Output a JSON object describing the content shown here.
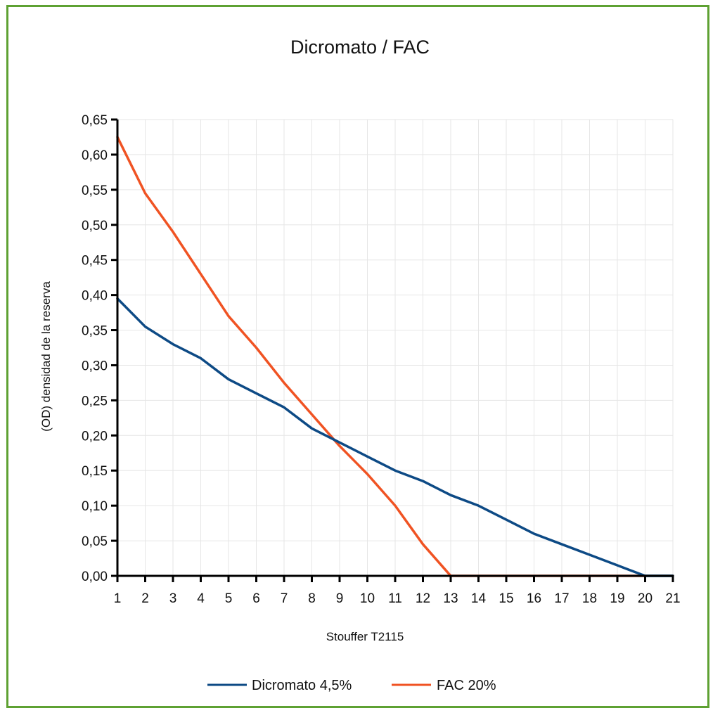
{
  "chart_data": {
    "type": "line",
    "title": "Dicromato / FAC",
    "xlabel": "Stouffer T2115",
    "ylabel": "(OD) densidad de la reserva",
    "x": [
      1,
      2,
      3,
      4,
      5,
      6,
      7,
      8,
      9,
      10,
      11,
      12,
      13,
      14,
      15,
      16,
      17,
      18,
      19,
      20,
      21
    ],
    "xlim": [
      1,
      21
    ],
    "ylim": [
      0,
      0.65
    ],
    "y_ticks": [
      "0,00",
      "0,05",
      "0,10",
      "0,15",
      "0,20",
      "0,25",
      "0,30",
      "0,35",
      "0,40",
      "0,45",
      "0,50",
      "0,55",
      "0,60",
      "0,65"
    ],
    "x_ticks": [
      "1",
      "2",
      "3",
      "4",
      "5",
      "6",
      "7",
      "8",
      "9",
      "10",
      "11",
      "12",
      "13",
      "14",
      "15",
      "16",
      "17",
      "18",
      "19",
      "20",
      "21"
    ],
    "grid": true,
    "legend_position": "bottom",
    "series": [
      {
        "name": "Dicromato 4,5%",
        "color": "#0d4a85",
        "x": [
          1,
          2,
          3,
          4,
          5,
          6,
          7,
          8,
          9,
          10,
          11,
          12,
          13,
          14,
          15,
          16,
          17,
          18,
          19,
          20,
          21
        ],
        "values": [
          0.395,
          0.355,
          0.33,
          0.31,
          0.28,
          0.26,
          0.24,
          0.21,
          0.19,
          0.17,
          0.15,
          0.135,
          0.115,
          0.1,
          0.08,
          0.06,
          0.045,
          0.03,
          0.015,
          0.0,
          0.0
        ]
      },
      {
        "name": "FAC 20%",
        "color": "#f05323",
        "x": [
          1,
          2,
          3,
          4,
          5,
          6,
          7,
          8,
          9,
          10,
          11,
          12,
          13,
          14,
          15,
          16,
          17,
          18,
          19,
          20
        ],
        "values": [
          0.625,
          0.545,
          0.49,
          0.43,
          0.37,
          0.325,
          0.275,
          0.23,
          0.185,
          0.145,
          0.1,
          0.045,
          0.0,
          0.0,
          0.0,
          0.0,
          0.0,
          0.0,
          0.0,
          0.0
        ]
      }
    ]
  }
}
